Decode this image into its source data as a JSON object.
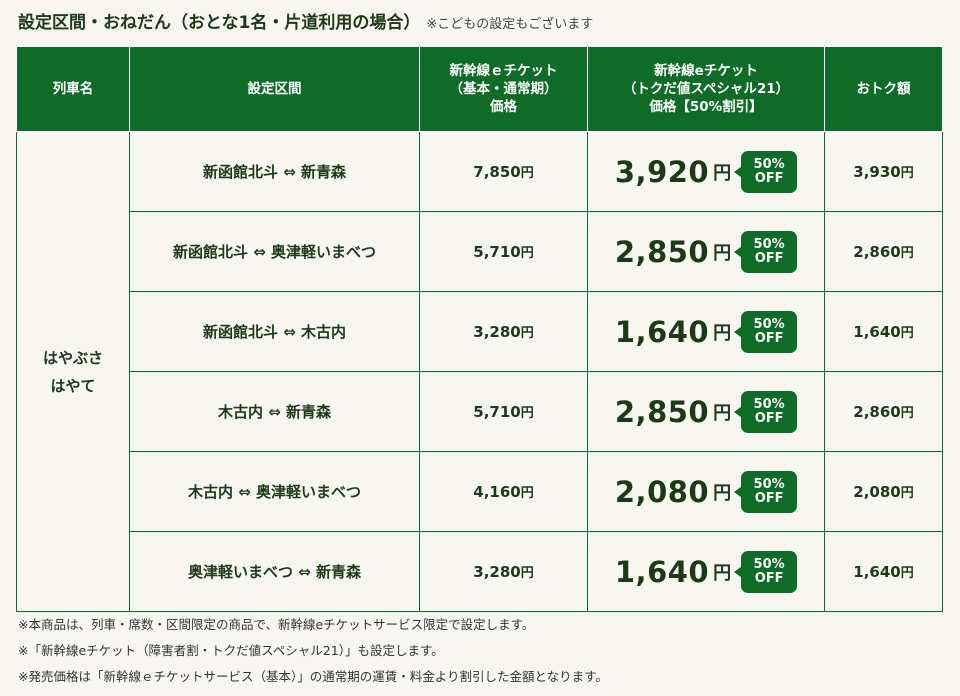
{
  "heading": {
    "title": "設定区間・おねだん（おとな1名・片道利用の場合）",
    "note": "※こどもの設定もございます"
  },
  "table": {
    "headers": {
      "train": "列車名",
      "section": "設定区間",
      "basic_line1": "新幹線ｅチケット",
      "basic_line2": "（基本・通常期）",
      "basic_line3": "価格",
      "special_line1": "新幹線eチケット",
      "special_line2": "（トクだ値スペシャル21）",
      "special_line3": "価格【50%割引】",
      "saving": "おトク額"
    },
    "train_line1": "はやぶさ",
    "train_line2": "はやて",
    "yen": "円",
    "badge_top": "50%",
    "badge_bottom": "OFF",
    "rows": [
      {
        "section": "新函館北斗 ⇔ 新青森",
        "basic": "7,850",
        "special": "3,920",
        "saving": "3,930"
      },
      {
        "section": "新函館北斗 ⇔ 奥津軽いまべつ",
        "basic": "5,710",
        "special": "2,850",
        "saving": "2,860"
      },
      {
        "section": "新函館北斗 ⇔ 木古内",
        "basic": "3,280",
        "special": "1,640",
        "saving": "1,640"
      },
      {
        "section": "木古内 ⇔ 新青森",
        "basic": "5,710",
        "special": "2,850",
        "saving": "2,860"
      },
      {
        "section": "木古内 ⇔ 奥津軽いまべつ",
        "basic": "4,160",
        "special": "2,080",
        "saving": "2,080"
      },
      {
        "section": "奥津軽いまべつ ⇔ 新青森",
        "basic": "3,280",
        "special": "1,640",
        "saving": "1,640"
      }
    ]
  },
  "notes": [
    "※本商品は、列車・席数・区間限定の商品で、新幹線eチケットサービス限定で設定します。",
    "※「新幹線eチケット（障害者割・トクだ値スペシャル21）」も設定します。",
    "※発売価格は「新幹線ｅチケットサービス（基本）」の通常期の運賃・料金より割引した金額となります。"
  ],
  "colors": {
    "header_green": "#0e6b28",
    "highlight": "#fbf8dc",
    "text_green": "#1c3a16"
  }
}
